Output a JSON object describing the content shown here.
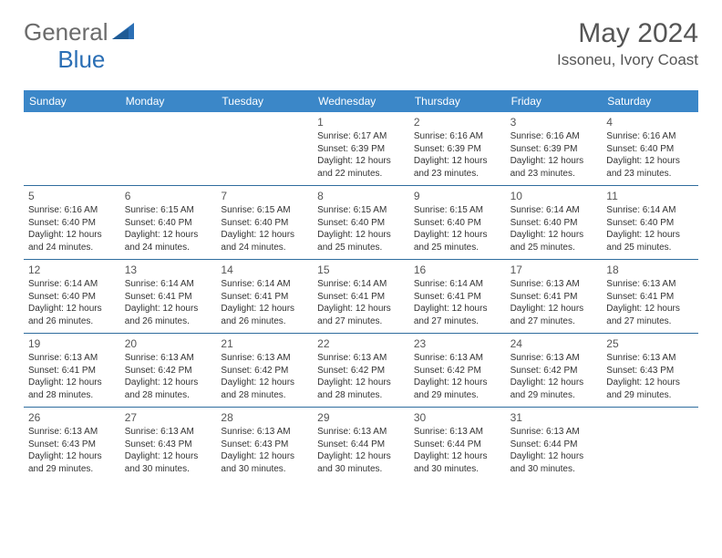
{
  "brand": {
    "part1": "General",
    "part2": "Blue"
  },
  "title": "May 2024",
  "location": "Issoneu, Ivory Coast",
  "colors": {
    "header_bg": "#3b87c8",
    "week_border": "#2f6d9e",
    "text_gray": "#555555",
    "logo_gray": "#6b6b6b",
    "logo_blue": "#2b6fb5"
  },
  "daynames": [
    "Sunday",
    "Monday",
    "Tuesday",
    "Wednesday",
    "Thursday",
    "Friday",
    "Saturday"
  ],
  "weeks": [
    [
      null,
      null,
      null,
      {
        "n": "1",
        "sr": "6:17 AM",
        "ss": "6:39 PM",
        "dl": "12 hours and 22 minutes."
      },
      {
        "n": "2",
        "sr": "6:16 AM",
        "ss": "6:39 PM",
        "dl": "12 hours and 23 minutes."
      },
      {
        "n": "3",
        "sr": "6:16 AM",
        "ss": "6:39 PM",
        "dl": "12 hours and 23 minutes."
      },
      {
        "n": "4",
        "sr": "6:16 AM",
        "ss": "6:40 PM",
        "dl": "12 hours and 23 minutes."
      }
    ],
    [
      {
        "n": "5",
        "sr": "6:16 AM",
        "ss": "6:40 PM",
        "dl": "12 hours and 24 minutes."
      },
      {
        "n": "6",
        "sr": "6:15 AM",
        "ss": "6:40 PM",
        "dl": "12 hours and 24 minutes."
      },
      {
        "n": "7",
        "sr": "6:15 AM",
        "ss": "6:40 PM",
        "dl": "12 hours and 24 minutes."
      },
      {
        "n": "8",
        "sr": "6:15 AM",
        "ss": "6:40 PM",
        "dl": "12 hours and 25 minutes."
      },
      {
        "n": "9",
        "sr": "6:15 AM",
        "ss": "6:40 PM",
        "dl": "12 hours and 25 minutes."
      },
      {
        "n": "10",
        "sr": "6:14 AM",
        "ss": "6:40 PM",
        "dl": "12 hours and 25 minutes."
      },
      {
        "n": "11",
        "sr": "6:14 AM",
        "ss": "6:40 PM",
        "dl": "12 hours and 25 minutes."
      }
    ],
    [
      {
        "n": "12",
        "sr": "6:14 AM",
        "ss": "6:40 PM",
        "dl": "12 hours and 26 minutes."
      },
      {
        "n": "13",
        "sr": "6:14 AM",
        "ss": "6:41 PM",
        "dl": "12 hours and 26 minutes."
      },
      {
        "n": "14",
        "sr": "6:14 AM",
        "ss": "6:41 PM",
        "dl": "12 hours and 26 minutes."
      },
      {
        "n": "15",
        "sr": "6:14 AM",
        "ss": "6:41 PM",
        "dl": "12 hours and 27 minutes."
      },
      {
        "n": "16",
        "sr": "6:14 AM",
        "ss": "6:41 PM",
        "dl": "12 hours and 27 minutes."
      },
      {
        "n": "17",
        "sr": "6:13 AM",
        "ss": "6:41 PM",
        "dl": "12 hours and 27 minutes."
      },
      {
        "n": "18",
        "sr": "6:13 AM",
        "ss": "6:41 PM",
        "dl": "12 hours and 27 minutes."
      }
    ],
    [
      {
        "n": "19",
        "sr": "6:13 AM",
        "ss": "6:41 PM",
        "dl": "12 hours and 28 minutes."
      },
      {
        "n": "20",
        "sr": "6:13 AM",
        "ss": "6:42 PM",
        "dl": "12 hours and 28 minutes."
      },
      {
        "n": "21",
        "sr": "6:13 AM",
        "ss": "6:42 PM",
        "dl": "12 hours and 28 minutes."
      },
      {
        "n": "22",
        "sr": "6:13 AM",
        "ss": "6:42 PM",
        "dl": "12 hours and 28 minutes."
      },
      {
        "n": "23",
        "sr": "6:13 AM",
        "ss": "6:42 PM",
        "dl": "12 hours and 29 minutes."
      },
      {
        "n": "24",
        "sr": "6:13 AM",
        "ss": "6:42 PM",
        "dl": "12 hours and 29 minutes."
      },
      {
        "n": "25",
        "sr": "6:13 AM",
        "ss": "6:43 PM",
        "dl": "12 hours and 29 minutes."
      }
    ],
    [
      {
        "n": "26",
        "sr": "6:13 AM",
        "ss": "6:43 PM",
        "dl": "12 hours and 29 minutes."
      },
      {
        "n": "27",
        "sr": "6:13 AM",
        "ss": "6:43 PM",
        "dl": "12 hours and 30 minutes."
      },
      {
        "n": "28",
        "sr": "6:13 AM",
        "ss": "6:43 PM",
        "dl": "12 hours and 30 minutes."
      },
      {
        "n": "29",
        "sr": "6:13 AM",
        "ss": "6:44 PM",
        "dl": "12 hours and 30 minutes."
      },
      {
        "n": "30",
        "sr": "6:13 AM",
        "ss": "6:44 PM",
        "dl": "12 hours and 30 minutes."
      },
      {
        "n": "31",
        "sr": "6:13 AM",
        "ss": "6:44 PM",
        "dl": "12 hours and 30 minutes."
      },
      null
    ]
  ],
  "labels": {
    "sunrise": "Sunrise: ",
    "sunset": "Sunset: ",
    "daylight": "Daylight: "
  }
}
